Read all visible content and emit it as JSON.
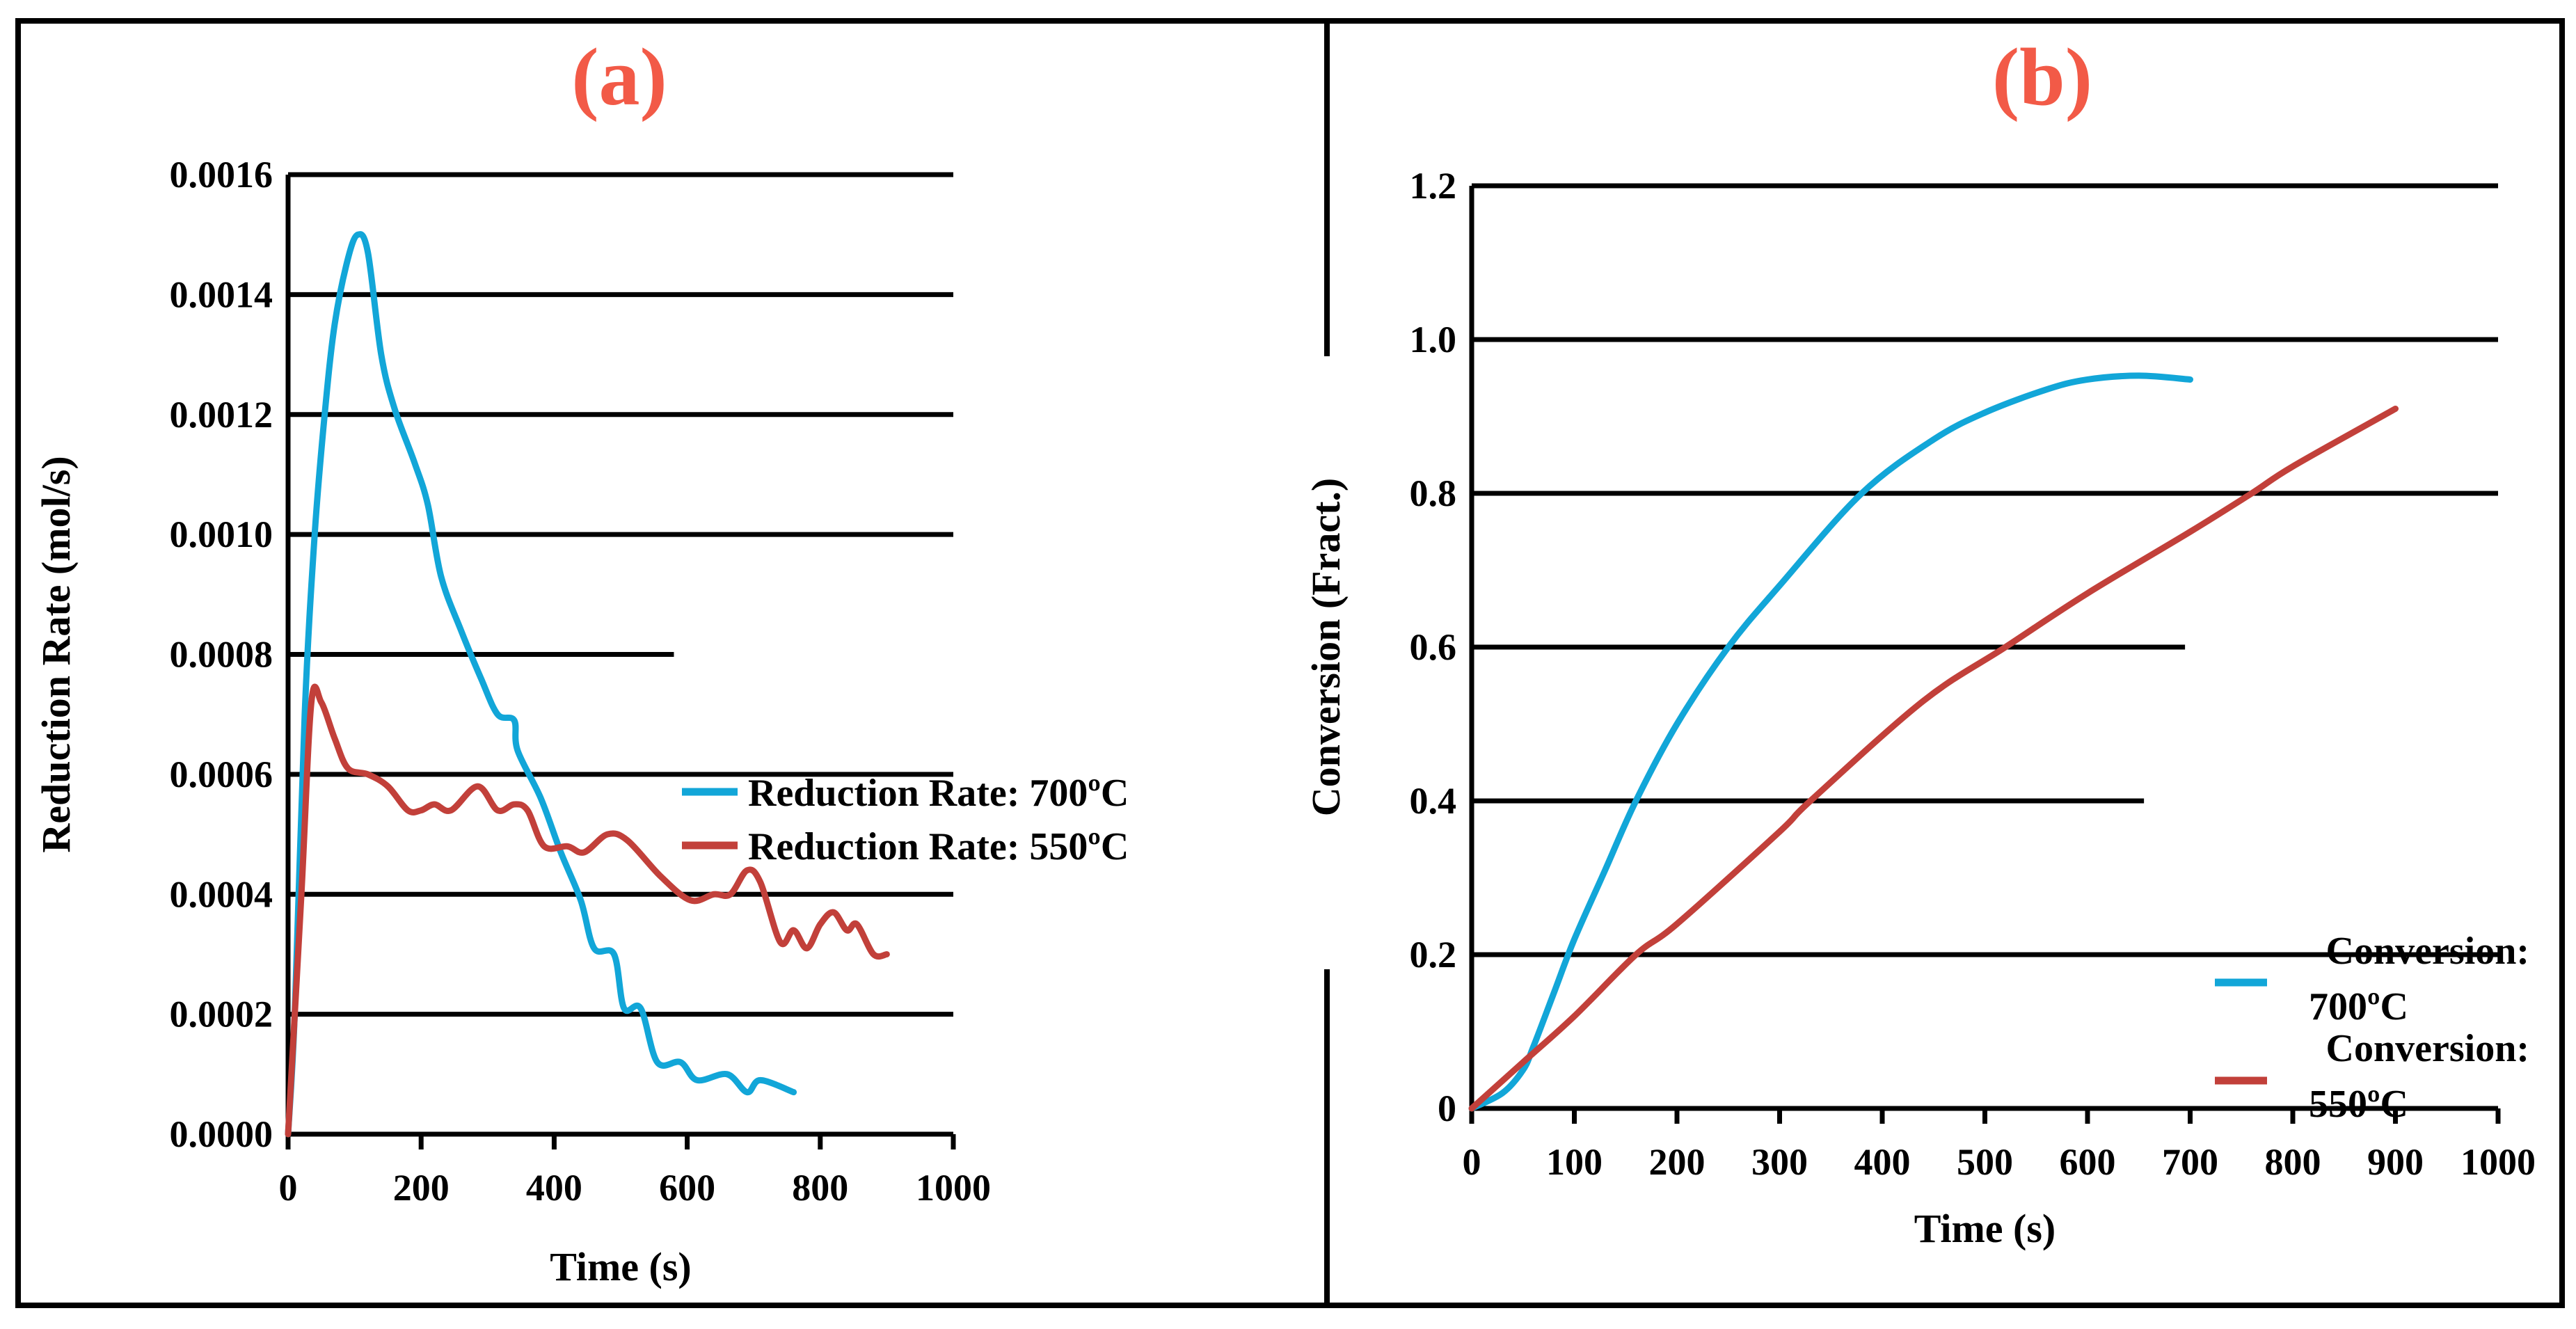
{
  "colors": {
    "series_700": "#12a6d8",
    "series_550": "#c2403a",
    "panel_title": "#f25a47",
    "grid": "#000000"
  },
  "chart_data": [
    {
      "type": "line",
      "title": "(a)",
      "xlabel": "Time (s)",
      "ylabel": "Reduction Rate (mol/s)",
      "xlim": [
        0,
        1000
      ],
      "ylim": [
        0,
        0.0016
      ],
      "xticks": [
        "0",
        "200",
        "400",
        "600",
        "800",
        "1000"
      ],
      "xtick_values": [
        0,
        200,
        400,
        600,
        800,
        1000
      ],
      "yticks": [
        "0.0000",
        "0.0002",
        "0.0004",
        "0.0006",
        "0.0008",
        "0.0010",
        "0.0012",
        "0.0014",
        "0.0016"
      ],
      "ytick_values": [
        0,
        0.0002,
        0.0004,
        0.0006,
        0.0008,
        0.001,
        0.0012,
        0.0014,
        0.0016
      ],
      "grid": "horizontal",
      "legend_position": "right",
      "series": [
        {
          "name": "Reduction Rate: 700ºC",
          "color": "#12a6d8",
          "x": [
            0,
            10,
            25,
            40,
            55,
            70,
            90,
            105,
            120,
            140,
            160,
            190,
            210,
            230,
            260,
            290,
            315,
            340,
            345,
            380,
            410,
            440,
            460,
            490,
            505,
            530,
            555,
            590,
            615,
            660,
            690,
            710,
            760
          ],
          "y": [
            0,
            0.0002,
            0.0007,
            0.001,
            0.0012,
            0.00135,
            0.00146,
            0.0015,
            0.00147,
            0.0013,
            0.00121,
            0.00112,
            0.00105,
            0.00093,
            0.00084,
            0.00076,
            0.0007,
            0.00069,
            0.00064,
            0.00056,
            0.00047,
            0.00039,
            0.00031,
            0.0003,
            0.00021,
            0.00021,
            0.00012,
            0.00012,
            9e-05,
            0.0001,
            7e-05,
            9e-05,
            7e-05
          ]
        },
        {
          "name": "Reduction Rate: 550ºC",
          "color": "#c2403a",
          "x": [
            0,
            20,
            35,
            50,
            70,
            90,
            120,
            150,
            180,
            200,
            220,
            245,
            285,
            315,
            340,
            360,
            385,
            420,
            445,
            480,
            510,
            560,
            605,
            640,
            665,
            690,
            710,
            740,
            760,
            780,
            800,
            820,
            840,
            855,
            880,
            900
          ],
          "y": [
            0,
            0.0004,
            0.00072,
            0.00072,
            0.00066,
            0.00061,
            0.0006,
            0.00058,
            0.00054,
            0.00054,
            0.00055,
            0.00054,
            0.00058,
            0.00054,
            0.00055,
            0.00054,
            0.00048,
            0.00048,
            0.00047,
            0.0005,
            0.00049,
            0.00043,
            0.00039,
            0.0004,
            0.0004,
            0.00044,
            0.00042,
            0.00032,
            0.00034,
            0.00031,
            0.00035,
            0.00037,
            0.00034,
            0.00035,
            0.0003,
            0.0003
          ]
        }
      ]
    },
    {
      "type": "line",
      "title": "(b)",
      "xlabel": "Time (s)",
      "ylabel": "Conversion (Fract.)",
      "xlim": [
        0,
        1000
      ],
      "ylim": [
        0,
        1.2
      ],
      "xticks": [
        "0",
        "100",
        "200",
        "300",
        "400",
        "500",
        "600",
        "700",
        "800",
        "900",
        "1000"
      ],
      "xtick_values": [
        0,
        100,
        200,
        300,
        400,
        500,
        600,
        700,
        800,
        900,
        1000
      ],
      "yticks": [
        "0",
        "0.2",
        "0.4",
        "0.6",
        "0.8",
        "1.0",
        "1.2"
      ],
      "ytick_values": [
        0,
        0.2,
        0.4,
        0.6,
        0.8,
        1.0,
        1.2
      ],
      "grid": "horizontal",
      "legend_position": "right",
      "series": [
        {
          "name": "Conversion: 700ºC",
          "name_lines": [
            "Conversion:",
            "700ºC"
          ],
          "color": "#12a6d8",
          "x": [
            0,
            30,
            50,
            60,
            80,
            100,
            130,
            160,
            200,
            250,
            300,
            380,
            450,
            500,
            560,
            600,
            650,
            700
          ],
          "y": [
            0,
            0.02,
            0.05,
            0.08,
            0.15,
            0.22,
            0.31,
            0.4,
            0.5,
            0.6,
            0.68,
            0.8,
            0.87,
            0.905,
            0.935,
            0.948,
            0.953,
            0.948
          ]
        },
        {
          "name": "Conversion: 550ºC",
          "name_lines": [
            "Conversion:",
            "550ºC"
          ],
          "color": "#c2403a",
          "x": [
            0,
            50,
            100,
            160,
            200,
            300,
            330,
            440,
            520,
            600,
            700,
            760,
            800,
            900
          ],
          "y": [
            0,
            0.06,
            0.12,
            0.2,
            0.24,
            0.36,
            0.4,
            0.53,
            0.6,
            0.67,
            0.75,
            0.8,
            0.835,
            0.91
          ]
        }
      ]
    }
  ]
}
